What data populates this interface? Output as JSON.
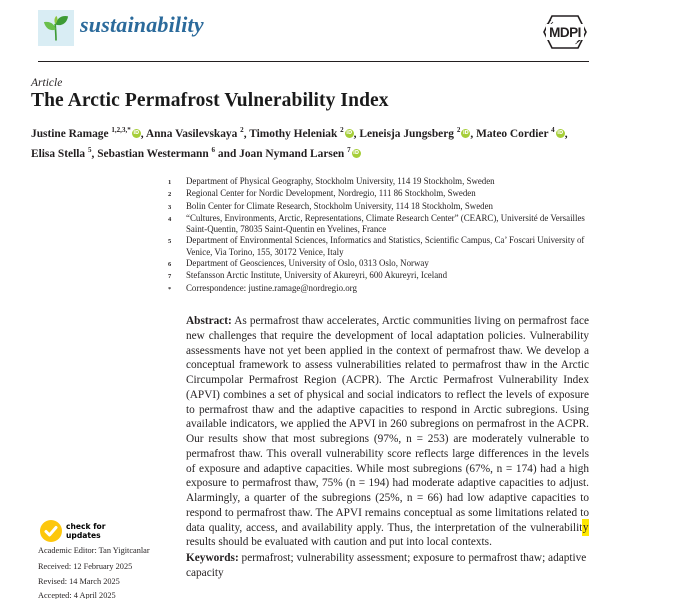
{
  "header": {
    "journal_name": "sustainability",
    "publisher": "MDPI"
  },
  "article": {
    "type_label": "Article",
    "title": "The Arctic Permafrost Vulnerability Index",
    "authors": [
      {
        "name": "Justine Ramage",
        "sup": "1,2,3,*",
        "orcid": true,
        "sep": ", "
      },
      {
        "name": "Anna Vasilevskaya",
        "sup": "2",
        "orcid": false,
        "sep": ", "
      },
      {
        "name": "Timothy Heleniak",
        "sup": "2",
        "orcid": true,
        "sep": ", "
      },
      {
        "name": "Leneisja Jungsberg",
        "sup": "2",
        "orcid": true,
        "sep": ", "
      },
      {
        "name": "Mateo Cordier",
        "sup": "4",
        "orcid": true,
        "sep": ", "
      },
      {
        "name": "Elisa Stella",
        "sup": "5",
        "orcid": false,
        "sep": ", "
      },
      {
        "name": "Sebastian Westermann",
        "sup": "6",
        "orcid": false,
        "sep": " and "
      },
      {
        "name": "Joan Nymand Larsen",
        "sup": "7",
        "orcid": true,
        "sep": ""
      }
    ],
    "affiliations": [
      {
        "sup": "1",
        "text": "Department of Physical Geography, Stockholm University, 114 19 Stockholm, Sweden"
      },
      {
        "sup": "2",
        "text": "Regional Center for Nordic Development, Nordregio, 111 86 Stockholm, Sweden"
      },
      {
        "sup": "3",
        "text": "Bolin Center for Climate Research, Stockholm University, 114 18 Stockholm, Sweden"
      },
      {
        "sup": "4",
        "text": "“Cultures, Environments, Arctic, Representations, Climate Research Center” (CEARC), Université de Versailles Saint-Quentin, 78035 Saint-Quentin en Yvelines, France"
      },
      {
        "sup": "5",
        "text": "Department of Environmental Sciences, Informatics and Statistics, Scientific Campus, Ca’ Foscari University of Venice, Via Torino, 155, 30172 Venice, Italy"
      },
      {
        "sup": "6",
        "text": "Department of Geosciences, University of Oslo, 0313 Oslo, Norway"
      },
      {
        "sup": "7",
        "text": "Stefansson Arctic Institute, University of Akureyri, 600 Akureyri, Iceland"
      },
      {
        "sup": "*",
        "text": "Correspondence: justine.ramage@nordregio.org"
      }
    ],
    "abstract": {
      "label": "Abstract:",
      "text_before_highlight": "As permafrost thaw accelerates, Arctic communities living on permafrost face new challenges that require the development of local adaptation policies. Vulnerability assessments have not yet been applied in the context of permafrost thaw. We develop a conceptual framework to assess vulnerabilities related to permafrost thaw in the Arctic Circumpolar Permafrost Region (ACPR). The Arctic Permafrost Vulnerability Index (APVI) combines a set of physical and social indicators to reflect the levels of exposure to permafrost thaw and the adaptive capacities to respond in Arctic subregions. Using available indicators, we applied the APVI in 260 subregions on permafrost in the ACPR. Our results show that most subregions (97%, n = 253) are moderately vulnerable to permafrost thaw. This overall vulnerability score reflects large differences in the levels of exposure and adaptive capacities. While most subregions (67%, n = 174) had a high exposure to permafrost thaw, 75% (n = 194) had moderate adaptive capacities to adjust. Alarmingly, a quarter of the subregions (25%, n = 66) had low adaptive capacities to respond to permafrost thaw. The APVI remains conceptual as some limitations related to data quality, access, and availability apply. Thus, the interpretation of the vulnerabilit",
      "highlighted_text": "y",
      "text_after_highlight": " results should be evaluated with caution and put into local contexts."
    },
    "keywords": {
      "label": "Keywords:",
      "text": "permafrost; vulnerability assessment; exposure to permafrost thaw; adaptive capacity"
    }
  },
  "sidebar": {
    "check_updates_line1": "check for",
    "check_updates_line2": "updates",
    "academic_editor": "Academic Editor: Tan Yigitcanlar",
    "received": "Received: 12 February 2025",
    "revised": "Revised: 14 March 2025",
    "accepted": "Accepted: 4 April 2025"
  },
  "icons": {
    "orcid_glyph": "iD",
    "check_glyph": "✓"
  },
  "colors": {
    "journal_name_blue": "#2b6a9b",
    "logo_background_blue": "#d9edf4",
    "plant_green_dark": "#3d9b35",
    "plant_green_light": "#6abf4b",
    "orcid_green": "#a6ce39",
    "crossmark_yellow": "#fdc70c",
    "highlight_yellow": "#ffe800",
    "text_black": "#231f20"
  }
}
